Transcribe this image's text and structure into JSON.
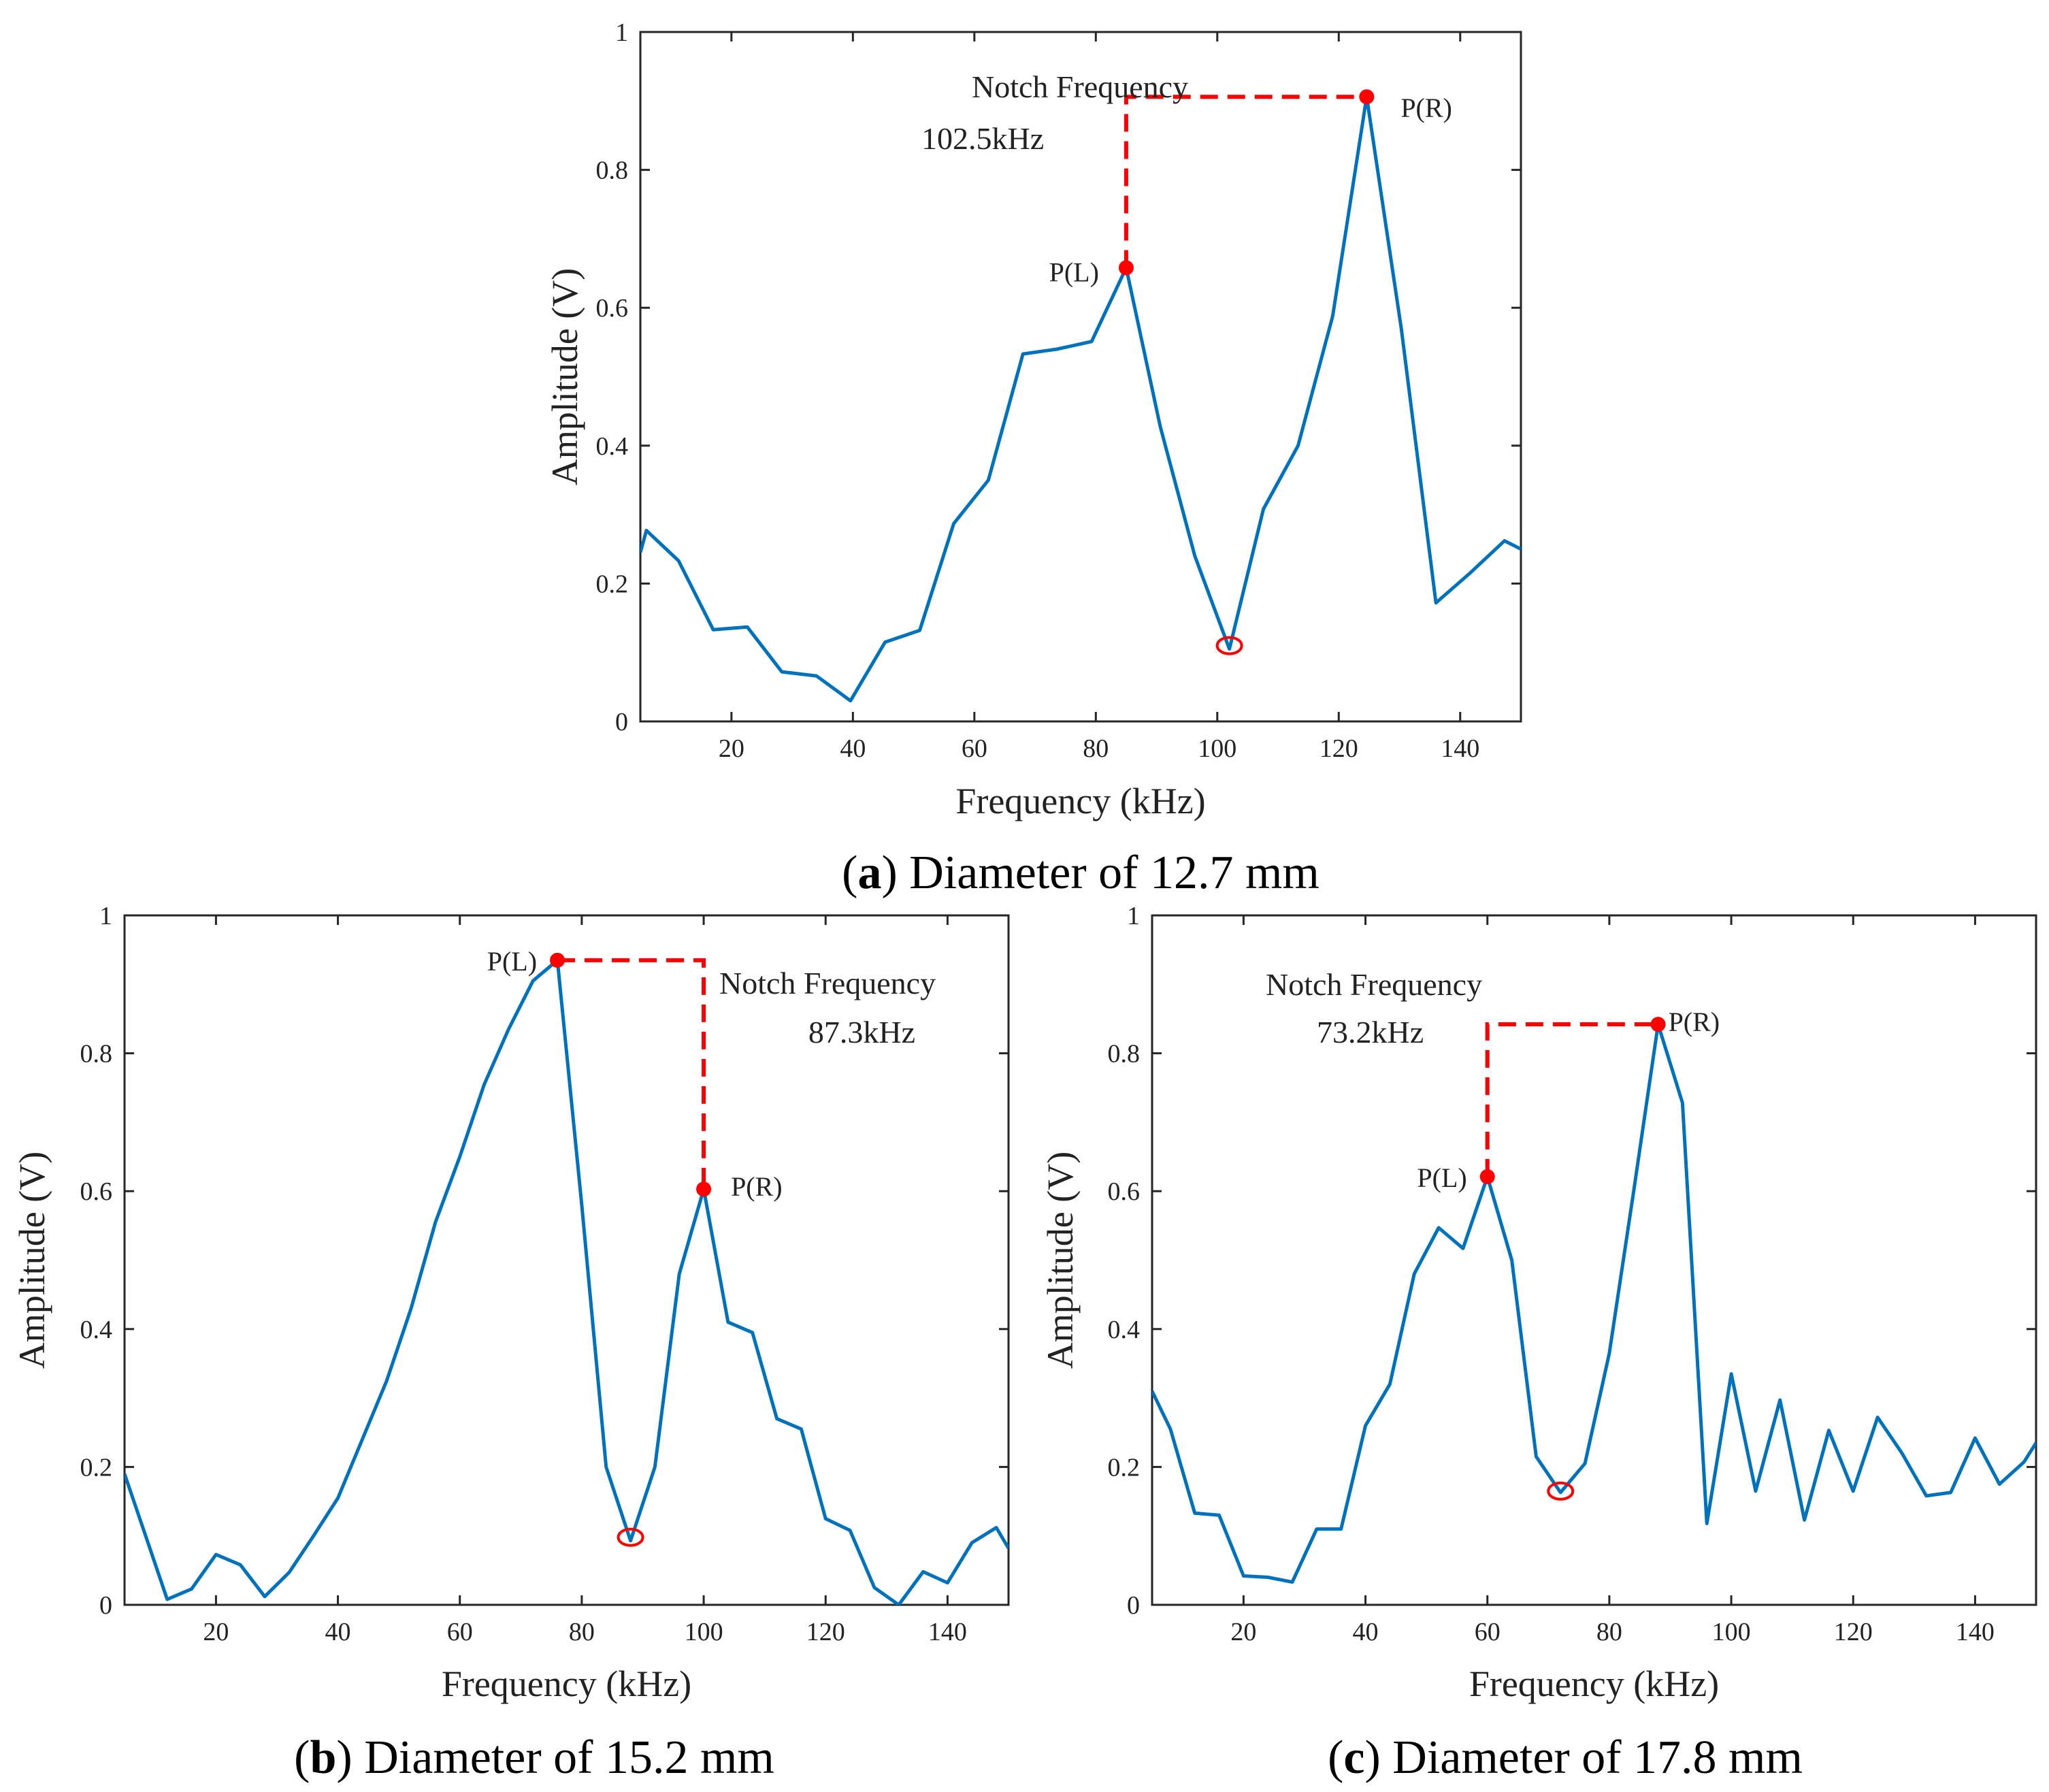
{
  "chart_data": [
    {
      "type": "line",
      "panel": "a",
      "caption_letter": "a",
      "caption_rest": " Diameter of 12.7 mm",
      "xlabel": "Frequency (kHz)",
      "ylabel": "Amplitude (V)",
      "xlim": [
        5,
        150
      ],
      "ylim": [
        0,
        1
      ],
      "xticks": [
        20,
        40,
        60,
        80,
        100,
        120,
        140
      ],
      "yticks": [
        0,
        0.2,
        0.4,
        0.6,
        0.8,
        1
      ],
      "ytick_labels": [
        "0",
        "0.2",
        "0.4",
        "0.6",
        "0.8",
        "1"
      ],
      "grid": false,
      "line_color": "#0072BD",
      "marker_color": "#FF0000",
      "x": [
        5,
        6,
        11.3,
        17,
        22.6,
        28.3,
        34,
        39.6,
        45.3,
        51,
        56.6,
        62.3,
        68,
        73.6,
        79.3,
        85,
        90.6,
        96.3,
        102,
        107.6,
        113.3,
        119,
        124.6,
        130.3,
        136,
        141.6,
        147.3,
        150
      ],
      "y": [
        0.245,
        0.277,
        0.233,
        0.133,
        0.137,
        0.072,
        0.066,
        0.03,
        0.115,
        0.132,
        0.287,
        0.35,
        0.533,
        0.54,
        0.551,
        0.658,
        0.428,
        0.24,
        0.105,
        0.308,
        0.4,
        0.588,
        0.906,
        0.57,
        0.172,
        0.215,
        0.262,
        0.25
      ],
      "peak_left": {
        "label": "P(L)",
        "x": 85,
        "y": 0.658
      },
      "peak_right": {
        "label": "P(R)",
        "x": 124.6,
        "y": 0.906
      },
      "notch": {
        "x": 102,
        "y": 0.11
      },
      "notch_label": "Notch Frequency",
      "notch_value": "102.5kHz"
    },
    {
      "type": "line",
      "panel": "b",
      "caption_letter": "b",
      "caption_rest": " Diameter of 15.2 mm",
      "xlabel": "Frequency (kHz)",
      "ylabel": "Amplitude (V)",
      "xlim": [
        5,
        150
      ],
      "ylim": [
        0,
        1
      ],
      "xticks": [
        20,
        40,
        60,
        80,
        100,
        120,
        140
      ],
      "yticks": [
        0,
        0.2,
        0.4,
        0.6,
        0.8,
        1
      ],
      "ytick_labels": [
        "0",
        "0.2",
        "0.4",
        "0.6",
        "0.8",
        "1"
      ],
      "grid": false,
      "line_color": "#0072BD",
      "marker_color": "#FF0000",
      "x": [
        5,
        8,
        12,
        16,
        20,
        24,
        28,
        32,
        36,
        40,
        44,
        48,
        52,
        56,
        60,
        64,
        68,
        72,
        76,
        80,
        84,
        88,
        92,
        96,
        100,
        104,
        108,
        112,
        116,
        120,
        124,
        128,
        132,
        136,
        140,
        144,
        148,
        150
      ],
      "y": [
        0.19,
        0.112,
        0.008,
        0.023,
        0.073,
        0.058,
        0.012,
        0.047,
        0.1,
        0.155,
        0.24,
        0.325,
        0.43,
        0.555,
        0.65,
        0.755,
        0.835,
        0.905,
        0.935,
        0.58,
        0.2,
        0.093,
        0.2,
        0.48,
        0.603,
        0.41,
        0.395,
        0.27,
        0.255,
        0.125,
        0.108,
        0.025,
        0.0,
        0.048,
        0.032,
        0.09,
        0.112,
        0.082
      ],
      "peak_left": {
        "label": "P(L)",
        "x": 76,
        "y": 0.935
      },
      "peak_right": {
        "label": "P(R)",
        "x": 100,
        "y": 0.603
      },
      "notch": {
        "x": 88,
        "y": 0.098
      },
      "notch_label": "Notch Frequency",
      "notch_value": "87.3kHz"
    },
    {
      "type": "line",
      "panel": "c",
      "caption_letter": "c",
      "caption_rest": " Diameter of 17.8 mm",
      "xlabel": "Frequency (kHz)",
      "ylabel": "Amplitude (V)",
      "xlim": [
        5,
        150
      ],
      "ylim": [
        0,
        1
      ],
      "xticks": [
        20,
        40,
        60,
        80,
        100,
        120,
        140
      ],
      "yticks": [
        0,
        0.2,
        0.4,
        0.6,
        0.8,
        1
      ],
      "ytick_labels": [
        "0",
        "0.2",
        "0.4",
        "0.6",
        "0.8",
        "1"
      ],
      "grid": false,
      "line_color": "#0072BD",
      "marker_color": "#FF0000",
      "x": [
        5,
        8,
        12,
        16,
        20,
        24,
        28,
        32,
        36,
        40,
        44,
        48,
        52,
        56,
        60,
        64,
        68,
        72,
        76,
        80,
        84,
        88,
        92,
        96,
        100,
        104,
        108,
        112,
        116,
        120,
        124,
        128,
        132,
        136,
        140,
        144,
        148,
        150
      ],
      "y": [
        0.31,
        0.255,
        0.133,
        0.13,
        0.042,
        0.04,
        0.033,
        0.11,
        0.11,
        0.26,
        0.32,
        0.48,
        0.547,
        0.517,
        0.621,
        0.5,
        0.215,
        0.163,
        0.205,
        0.365,
        0.6,
        0.842,
        0.728,
        0.118,
        0.335,
        0.165,
        0.297,
        0.123,
        0.253,
        0.165,
        0.272,
        0.22,
        0.158,
        0.163,
        0.242,
        0.175,
        0.207,
        0.235
      ],
      "peak_left": {
        "label": "P(L)",
        "x": 60,
        "y": 0.621
      },
      "peak_right": {
        "label": "P(R)",
        "x": 88,
        "y": 0.842
      },
      "notch": {
        "x": 72,
        "y": 0.165
      },
      "notch_label": "Notch Frequency",
      "notch_value": "73.2kHz"
    }
  ]
}
